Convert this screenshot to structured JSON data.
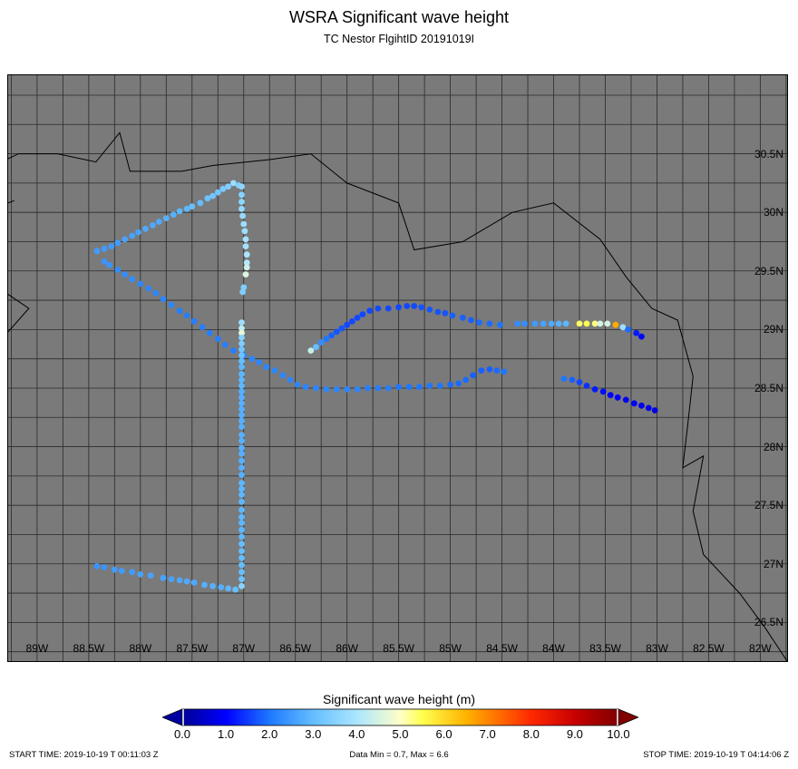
{
  "title": "WSRA Significant wave height",
  "subtitle": "TC Nestor FlgihtID 20191019I",
  "map": {
    "lon_range": [
      -89.28,
      -81.74
    ],
    "lat_range": [
      26.17,
      31.17
    ],
    "background": "#7a7a7a",
    "lat_labels": [
      "26.5N",
      "27N",
      "27.5N",
      "28N",
      "28.5N",
      "29N",
      "29.5N",
      "30N",
      "30.5N"
    ],
    "lat_values": [
      26.5,
      27,
      27.5,
      28,
      28.5,
      29,
      29.5,
      30,
      30.5
    ],
    "lon_labels": [
      "89W",
      "88.5W",
      "88W",
      "87.5W",
      "87W",
      "86.5W",
      "86W",
      "85.5W",
      "85W",
      "84.5W",
      "84W",
      "83.5W",
      "83W",
      "82.5W",
      "82W"
    ],
    "lon_values": [
      -89,
      -88.5,
      -88,
      -87.5,
      -87,
      -86.5,
      -86,
      -85.5,
      -85,
      -84.5,
      -84,
      -83.5,
      -83,
      -82.5,
      -82
    ]
  },
  "colorbar": {
    "label": "Significant wave height (m)",
    "ticks": [
      "0.0",
      "1.0",
      "2.0",
      "3.0",
      "4.0",
      "5.0",
      "6.0",
      "7.0",
      "8.0",
      "9.0",
      "10.0"
    ],
    "min": 0,
    "max": 10,
    "under_color": "#0000a0",
    "over_color": "#800000"
  },
  "footer": {
    "start": "START TIME: 2019-10-19 T 00:11:03 Z",
    "stats": "Data Min = 0.7, Max = 6.6",
    "stop": "STOP TIME: 2019-10-19 T 04:14:06 Z"
  },
  "coastline": [
    [
      [
        -89.3,
        30.45
      ],
      [
        -89.18,
        30.5
      ],
      [
        -88.8,
        30.5
      ],
      [
        -88.43,
        30.43
      ],
      [
        -88.2,
        30.68
      ],
      [
        -88.1,
        30.35
      ],
      [
        -87.6,
        30.35
      ],
      [
        -87.3,
        30.4
      ],
      [
        -86.75,
        30.45
      ],
      [
        -86.35,
        30.5
      ],
      [
        -86.0,
        30.25
      ],
      [
        -85.5,
        30.08
      ],
      [
        -85.35,
        29.68
      ],
      [
        -84.88,
        29.75
      ],
      [
        -84.4,
        30.0
      ],
      [
        -84.0,
        30.08
      ],
      [
        -83.55,
        29.77
      ],
      [
        -83.3,
        29.45
      ],
      [
        -83.05,
        29.18
      ],
      [
        -82.8,
        29.08
      ],
      [
        -82.65,
        28.6
      ],
      [
        -82.7,
        28.2
      ],
      [
        -82.75,
        27.82
      ],
      [
        -82.55,
        27.92
      ],
      [
        -82.65,
        27.45
      ],
      [
        -82.55,
        27.08
      ],
      [
        -82.2,
        26.75
      ],
      [
        -81.95,
        26.45
      ],
      [
        -81.74,
        26.17
      ]
    ],
    [
      [
        -89.28,
        29.3
      ],
      [
        -89.08,
        29.18
      ],
      [
        -89.28,
        28.98
      ]
    ],
    [
      [
        -89.28,
        30.08
      ],
      [
        -89.22,
        30.1
      ]
    ]
  ],
  "swh_points": [
    [
      -87.1,
      30.25,
      3.8
    ],
    [
      -87.05,
      30.23,
      3.4
    ],
    [
      -87.15,
      30.22,
      3.4
    ],
    [
      -87.2,
      30.2,
      3.3
    ],
    [
      -87.25,
      30.17,
      3.2
    ],
    [
      -87.3,
      30.14,
      3.2
    ],
    [
      -87.35,
      30.12,
      3.1
    ],
    [
      -87.42,
      30.08,
      3.0
    ],
    [
      -87.5,
      30.05,
      3.0
    ],
    [
      -87.55,
      30.03,
      2.9
    ],
    [
      -87.62,
      30.01,
      2.9
    ],
    [
      -87.68,
      29.98,
      2.8
    ],
    [
      -87.75,
      29.95,
      2.8
    ],
    [
      -87.82,
      29.92,
      2.7
    ],
    [
      -87.88,
      29.89,
      2.7
    ],
    [
      -87.95,
      29.86,
      2.7
    ],
    [
      -88.02,
      29.83,
      2.6
    ],
    [
      -88.08,
      29.8,
      2.6
    ],
    [
      -88.15,
      29.77,
      2.6
    ],
    [
      -88.22,
      29.74,
      2.5
    ],
    [
      -88.28,
      29.71,
      2.5
    ],
    [
      -88.35,
      29.69,
      2.5
    ],
    [
      -88.42,
      29.67,
      2.5
    ],
    [
      -88.35,
      29.58,
      2.4
    ],
    [
      -88.3,
      29.55,
      2.4
    ],
    [
      -88.22,
      29.51,
      2.3
    ],
    [
      -88.15,
      29.47,
      2.3
    ],
    [
      -88.08,
      29.43,
      2.3
    ],
    [
      -88.0,
      29.39,
      2.2
    ],
    [
      -87.92,
      29.35,
      2.2
    ],
    [
      -87.85,
      29.31,
      2.2
    ],
    [
      -87.78,
      29.26,
      2.2
    ],
    [
      -87.7,
      29.21,
      2.2
    ],
    [
      -87.62,
      29.16,
      2.1
    ],
    [
      -87.55,
      29.12,
      2.1
    ],
    [
      -87.48,
      29.07,
      2.1
    ],
    [
      -87.4,
      29.02,
      2.1
    ],
    [
      -87.33,
      28.97,
      2.1
    ],
    [
      -87.25,
      28.92,
      2.1
    ],
    [
      -87.18,
      28.87,
      2.1
    ],
    [
      -87.1,
      28.82,
      2.1
    ],
    [
      -87.0,
      28.78,
      2.2
    ],
    [
      -86.92,
      28.75,
      2.2
    ],
    [
      -86.85,
      28.72,
      2.2
    ],
    [
      -86.78,
      28.68,
      2.2
    ],
    [
      -86.7,
      28.65,
      2.2
    ],
    [
      -86.62,
      28.61,
      2.2
    ],
    [
      -86.55,
      28.57,
      2.2
    ],
    [
      -86.48,
      28.53,
      2.2
    ],
    [
      -86.4,
      28.51,
      2.2
    ],
    [
      -86.3,
      28.5,
      2.2
    ],
    [
      -86.2,
      28.49,
      2.2
    ],
    [
      -86.1,
      28.49,
      2.2
    ],
    [
      -86.0,
      28.49,
      2.2
    ],
    [
      -85.9,
      28.49,
      2.2
    ],
    [
      -85.8,
      28.5,
      2.1
    ],
    [
      -85.7,
      28.5,
      2.1
    ],
    [
      -85.6,
      28.5,
      2.1
    ],
    [
      -85.5,
      28.51,
      2.0
    ],
    [
      -85.4,
      28.51,
      2.0
    ],
    [
      -85.3,
      28.51,
      2.0
    ],
    [
      -85.2,
      28.52,
      2.0
    ],
    [
      -85.1,
      28.52,
      2.0
    ],
    [
      -85.0,
      28.53,
      1.9
    ],
    [
      -84.92,
      28.54,
      1.9
    ],
    [
      -84.85,
      28.57,
      1.9
    ],
    [
      -84.78,
      28.61,
      1.8
    ],
    [
      -84.7,
      28.65,
      1.8
    ],
    [
      -84.62,
      28.66,
      1.8
    ],
    [
      -84.55,
      28.65,
      1.9
    ],
    [
      -84.48,
      28.64,
      2.0
    ],
    [
      -87.02,
      30.22,
      3.6
    ],
    [
      -87.02,
      30.15,
      3.5
    ],
    [
      -87.02,
      30.09,
      3.6
    ],
    [
      -87.02,
      30.03,
      3.7
    ],
    [
      -87.01,
      29.97,
      3.7
    ],
    [
      -87.0,
      29.9,
      3.8
    ],
    [
      -86.99,
      29.84,
      3.8
    ],
    [
      -86.98,
      29.77,
      3.9
    ],
    [
      -86.98,
      29.71,
      3.9
    ],
    [
      -86.97,
      29.64,
      4.0
    ],
    [
      -86.97,
      29.57,
      4.1
    ],
    [
      -86.97,
      29.53,
      4.4
    ],
    [
      -86.98,
      29.47,
      4.6
    ],
    [
      -87.0,
      29.36,
      3.4
    ],
    [
      -87.01,
      29.32,
      3.4
    ],
    [
      -87.02,
      29.06,
      3.8
    ],
    [
      -87.02,
      29.01,
      4.2
    ],
    [
      -87.02,
      28.97,
      4.7
    ],
    [
      -87.02,
      28.93,
      3.5
    ],
    [
      -87.02,
      28.88,
      3.4
    ],
    [
      -87.02,
      28.83,
      3.2
    ],
    [
      -87.02,
      28.78,
      3.1
    ],
    [
      -87.02,
      28.73,
      3.0
    ],
    [
      -87.02,
      28.68,
      2.9
    ],
    [
      -87.02,
      28.62,
      2.9
    ],
    [
      -87.02,
      28.57,
      2.9
    ],
    [
      -87.02,
      28.52,
      2.9
    ],
    [
      -87.02,
      28.47,
      2.8
    ],
    [
      -87.02,
      28.42,
      2.8
    ],
    [
      -87.02,
      28.37,
      2.8
    ],
    [
      -87.02,
      28.32,
      2.8
    ],
    [
      -87.02,
      28.27,
      2.8
    ],
    [
      -87.02,
      28.22,
      2.8
    ],
    [
      -87.02,
      28.17,
      2.8
    ],
    [
      -87.02,
      28.1,
      2.8
    ],
    [
      -87.02,
      28.05,
      2.8
    ],
    [
      -87.02,
      27.99,
      2.8
    ],
    [
      -87.02,
      27.94,
      2.8
    ],
    [
      -87.02,
      27.88,
      2.8
    ],
    [
      -87.02,
      27.82,
      2.8
    ],
    [
      -87.02,
      27.76,
      2.8
    ],
    [
      -87.02,
      27.69,
      2.9
    ],
    [
      -87.02,
      27.64,
      2.9
    ],
    [
      -87.02,
      27.59,
      2.9
    ],
    [
      -87.02,
      27.53,
      2.9
    ],
    [
      -87.02,
      27.46,
      2.9
    ],
    [
      -87.02,
      27.4,
      2.9
    ],
    [
      -87.02,
      27.35,
      2.9
    ],
    [
      -87.02,
      27.29,
      2.9
    ],
    [
      -87.02,
      27.23,
      2.9
    ],
    [
      -87.02,
      27.17,
      3.0
    ],
    [
      -87.02,
      27.11,
      3.0
    ],
    [
      -87.02,
      27.05,
      3.0
    ],
    [
      -87.02,
      26.99,
      3.0
    ],
    [
      -87.02,
      26.93,
      3.0
    ],
    [
      -87.02,
      26.87,
      3.1
    ],
    [
      -87.02,
      26.81,
      3.5
    ],
    [
      -87.08,
      26.78,
      3.0
    ],
    [
      -87.15,
      26.79,
      2.9
    ],
    [
      -87.22,
      26.8,
      2.8
    ],
    [
      -87.3,
      26.81,
      2.8
    ],
    [
      -87.38,
      26.82,
      2.8
    ],
    [
      -87.48,
      26.84,
      2.7
    ],
    [
      -87.55,
      26.85,
      2.7
    ],
    [
      -87.62,
      26.86,
      2.7
    ],
    [
      -87.7,
      26.87,
      2.6
    ],
    [
      -87.78,
      26.88,
      2.6
    ],
    [
      -87.9,
      26.9,
      2.6
    ],
    [
      -88.0,
      26.91,
      2.6
    ],
    [
      -88.08,
      26.93,
      2.5
    ],
    [
      -88.18,
      26.94,
      2.5
    ],
    [
      -88.25,
      26.95,
      2.5
    ],
    [
      -88.35,
      26.97,
      2.4
    ],
    [
      -88.42,
      26.98,
      2.4
    ],
    [
      -86.35,
      28.82,
      4.3
    ],
    [
      -86.3,
      28.85,
      3.0
    ],
    [
      -86.25,
      28.89,
      2.3
    ],
    [
      -86.2,
      28.92,
      2.0
    ],
    [
      -86.15,
      28.95,
      1.8
    ],
    [
      -86.1,
      28.98,
      1.7
    ],
    [
      -86.05,
      29.01,
      1.7
    ],
    [
      -86.0,
      29.04,
      1.6
    ],
    [
      -85.95,
      29.07,
      1.6
    ],
    [
      -85.9,
      29.1,
      1.6
    ],
    [
      -85.85,
      29.13,
      1.6
    ],
    [
      -85.78,
      29.16,
      1.6
    ],
    [
      -85.7,
      29.18,
      1.6
    ],
    [
      -85.6,
      29.18,
      1.6
    ],
    [
      -85.5,
      29.19,
      1.6
    ],
    [
      -85.42,
      29.2,
      1.6
    ],
    [
      -85.35,
      29.2,
      1.6
    ],
    [
      -85.28,
      29.19,
      1.7
    ],
    [
      -85.2,
      29.17,
      1.7
    ],
    [
      -85.12,
      29.15,
      1.7
    ],
    [
      -85.05,
      29.14,
      1.7
    ],
    [
      -84.98,
      29.12,
      1.8
    ],
    [
      -84.88,
      29.1,
      1.8
    ],
    [
      -84.8,
      29.08,
      1.8
    ],
    [
      -84.72,
      29.06,
      1.9
    ],
    [
      -84.62,
      29.05,
      1.9
    ],
    [
      -84.52,
      29.04,
      2.0
    ],
    [
      -84.35,
      29.05,
      2.3
    ],
    [
      -84.28,
      29.05,
      2.3
    ],
    [
      -84.18,
      29.05,
      2.5
    ],
    [
      -84.1,
      29.05,
      2.6
    ],
    [
      -84.02,
      29.05,
      2.7
    ],
    [
      -83.95,
      29.05,
      2.8
    ],
    [
      -83.88,
      29.05,
      2.9
    ],
    [
      -83.75,
      29.05,
      5.4
    ],
    [
      -83.68,
      29.05,
      5.5
    ],
    [
      -83.6,
      29.05,
      5.3
    ],
    [
      -83.55,
      29.05,
      4.5
    ],
    [
      -83.48,
      29.05,
      4.5
    ],
    [
      -83.4,
      29.04,
      6.6
    ],
    [
      -83.33,
      29.02,
      3.8
    ],
    [
      -83.28,
      29.0,
      1.9
    ],
    [
      -83.2,
      28.97,
      1.2
    ],
    [
      -83.15,
      28.94,
      1.0
    ],
    [
      -83.9,
      28.58,
      2.0
    ],
    [
      -83.82,
      28.57,
      1.8
    ],
    [
      -83.75,
      28.55,
      1.6
    ],
    [
      -83.68,
      28.52,
      1.4
    ],
    [
      -83.6,
      28.49,
      1.2
    ],
    [
      -83.52,
      28.47,
      1.1
    ],
    [
      -83.45,
      28.44,
      1.0
    ],
    [
      -83.38,
      28.42,
      1.0
    ],
    [
      -83.3,
      28.4,
      0.9
    ],
    [
      -83.22,
      28.37,
      0.9
    ],
    [
      -83.15,
      28.35,
      0.8
    ],
    [
      -83.08,
      28.33,
      0.8
    ],
    [
      -83.02,
      28.31,
      0.7
    ]
  ]
}
